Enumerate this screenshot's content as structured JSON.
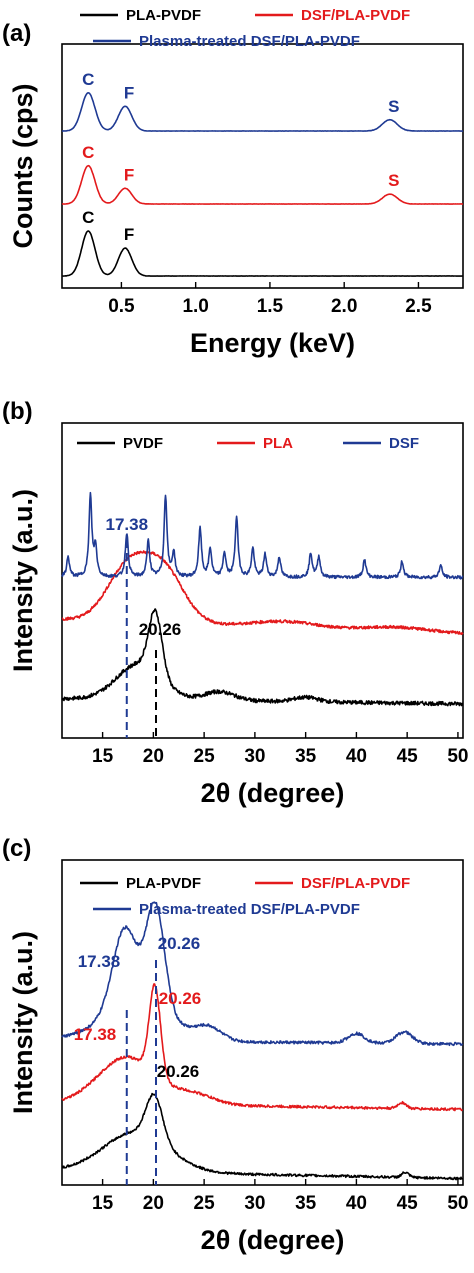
{
  "chart_data": [
    {
      "panel": "(a)",
      "type": "line",
      "xlabel": "Energy (keV)",
      "ylabel": "Counts (cps)",
      "xlim": [
        0.1,
        2.8
      ],
      "xticks": [
        0.5,
        1.0,
        1.5,
        2.0,
        2.5
      ],
      "xtick_labels": [
        "0.5",
        "1.0",
        "1.5",
        "2.0",
        "2.5"
      ],
      "legend": {
        "placement": "top",
        "entries": [
          "PLA-PVDF",
          "DSF/PLA-PVDF",
          "Plasma-treated DSF/PLA-PVDF"
        ]
      },
      "series": [
        {
          "name": "PLA-PVDF",
          "color": "#000000",
          "offset": 0,
          "peaks": [
            [
              0.277,
              1.0,
              0.045
            ],
            [
              0.525,
              0.62,
              0.045
            ]
          ],
          "labels": [
            {
              "text": "C",
              "x": 0.277
            },
            {
              "text": "F",
              "x": 0.525
            }
          ]
        },
        {
          "name": "DSF/PLA-PVDF",
          "color": "#e31a1c",
          "offset": 1,
          "peaks": [
            [
              0.277,
              0.85,
              0.045
            ],
            [
              0.525,
              0.35,
              0.045
            ],
            [
              2.307,
              0.22,
              0.05
            ]
          ],
          "labels": [
            {
              "text": "C",
              "x": 0.277
            },
            {
              "text": "F",
              "x": 0.525
            },
            {
              "text": "S",
              "x": 2.307
            }
          ]
        },
        {
          "name": "Plasma-treated DSF/PLA-PVDF",
          "color": "#1f3a93",
          "offset": 2,
          "peaks": [
            [
              0.277,
              0.85,
              0.045
            ],
            [
              0.525,
              0.55,
              0.045
            ],
            [
              2.307,
              0.25,
              0.05
            ]
          ],
          "labels": [
            {
              "text": "C",
              "x": 0.277
            },
            {
              "text": "F",
              "x": 0.525
            },
            {
              "text": "S",
              "x": 2.307
            }
          ]
        }
      ]
    },
    {
      "panel": "(b)",
      "type": "line",
      "xlabel": "2θ (degree)",
      "ylabel": "Intensity (a.u.)",
      "xlim": [
        11,
        50.5
      ],
      "xticks": [
        15,
        20,
        25,
        30,
        35,
        40,
        45,
        50
      ],
      "xtick_labels": [
        "15",
        "20",
        "25",
        "30",
        "35",
        "40",
        "45",
        "50"
      ],
      "legend": {
        "placement": "top",
        "entries": [
          "PVDF",
          "PLA",
          "DSF"
        ]
      },
      "series": [
        {
          "name": "PVDF",
          "color": "#000000",
          "baseline": 0.0,
          "profile": "pvdf"
        },
        {
          "name": "PLA",
          "color": "#e31a1c",
          "baseline": 1.0,
          "profile": "pla"
        },
        {
          "name": "DSF",
          "color": "#1f3a93",
          "baseline": 2.0,
          "profile": "dsf",
          "peaks": [
            [
              11.6,
              0.25
            ],
            [
              13.8,
              1.0
            ],
            [
              14.3,
              0.35
            ],
            [
              17.38,
              0.55
            ],
            [
              19.5,
              0.45
            ],
            [
              21.2,
              1.0
            ],
            [
              22.0,
              0.3
            ],
            [
              24.6,
              0.6
            ],
            [
              25.6,
              0.35
            ],
            [
              27.0,
              0.3
            ],
            [
              28.2,
              0.75
            ],
            [
              29.8,
              0.35
            ],
            [
              31.0,
              0.28
            ],
            [
              32.4,
              0.25
            ],
            [
              35.5,
              0.3
            ],
            [
              36.3,
              0.25
            ],
            [
              40.8,
              0.22
            ],
            [
              44.5,
              0.2
            ],
            [
              48.3,
              0.15
            ]
          ]
        }
      ],
      "annotations": [
        {
          "text": "17.38",
          "x": 17.38,
          "color": "#1f3a93"
        },
        {
          "text": "20.26",
          "x": 20.26,
          "color": "#000000"
        }
      ]
    },
    {
      "panel": "(c)",
      "type": "line",
      "xlabel": "2θ (degree)",
      "ylabel": "Intensity (a.u.)",
      "xlim": [
        11,
        50.5
      ],
      "xticks": [
        15,
        20,
        25,
        30,
        35,
        40,
        45,
        50
      ],
      "xtick_labels": [
        "15",
        "20",
        "25",
        "30",
        "35",
        "40",
        "45",
        "50"
      ],
      "legend": {
        "placement": "top",
        "entries": [
          "PLA-PVDF",
          "DSF/PLA-PVDF",
          "Plasma-treated DSF/PLA-PVDF"
        ]
      },
      "series": [
        {
          "name": "PLA-PVDF",
          "color": "#000000",
          "baseline": 0.0,
          "profile": "c_black"
        },
        {
          "name": "DSF/PLA-PVDF",
          "color": "#e31a1c",
          "baseline": 1.0,
          "profile": "c_red"
        },
        {
          "name": "Plasma-treated DSF/PLA-PVDF",
          "color": "#1f3a93",
          "baseline": 2.0,
          "profile": "c_blue"
        }
      ],
      "annotations": [
        {
          "text": "17.38",
          "x": 17.38,
          "color": "#1f3a93",
          "row": "blue"
        },
        {
          "text": "20.26",
          "x": 20.26,
          "color": "#1f3a93",
          "row": "blue"
        },
        {
          "text": "17.38",
          "x": 17.38,
          "color": "#e31a1c",
          "row": "red"
        },
        {
          "text": "20.26",
          "x": 20.26,
          "color": "#e31a1c",
          "row": "red"
        },
        {
          "text": "20.26",
          "x": 20.26,
          "color": "#000000",
          "row": "black"
        }
      ]
    }
  ]
}
